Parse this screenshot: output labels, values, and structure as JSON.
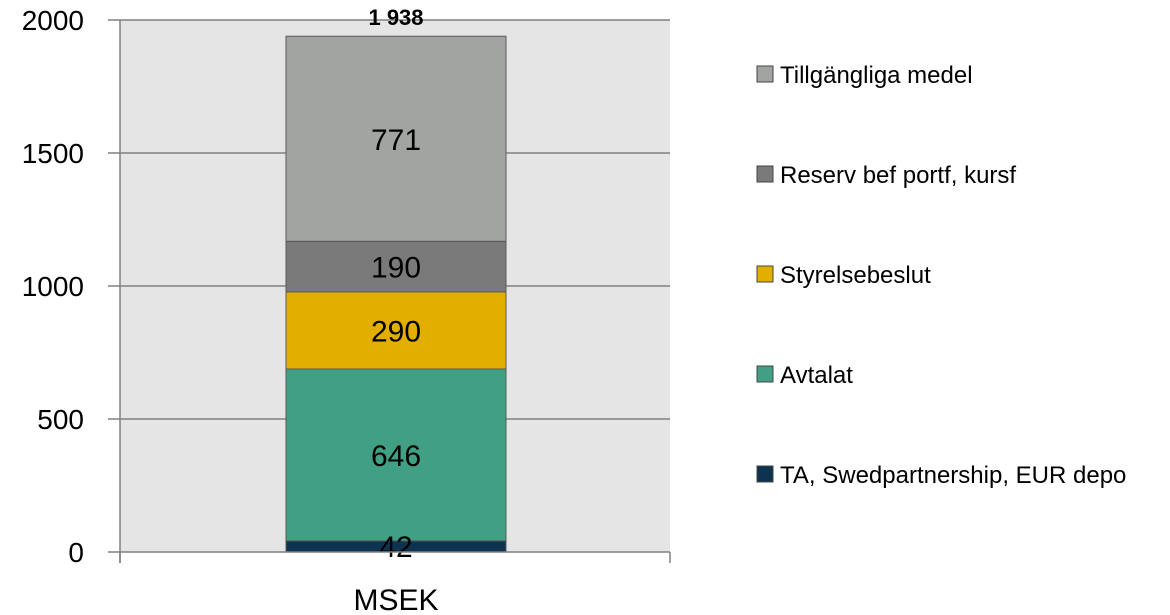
{
  "chart_data": {
    "type": "bar",
    "stacked": true,
    "categories": [
      "MSEK"
    ],
    "series": [
      {
        "name": "TA, Swedpartnership, EUR depo",
        "values": [
          42
        ],
        "label": "42",
        "color": "#0e3350"
      },
      {
        "name": "Avtalat",
        "values": [
          646
        ],
        "label": "646",
        "color": "#41a084"
      },
      {
        "name": "Styrelsebeslut",
        "values": [
          290
        ],
        "label": "290",
        "color": "#e2af00"
      },
      {
        "name": "Reserv bef portf, kursf",
        "values": [
          190
        ],
        "label": "190",
        "color": "#7a7a7a"
      },
      {
        "name": "Tillgängliga medel",
        "values": [
          771
        ],
        "label": "771",
        "color": "#a1a4a0"
      }
    ],
    "total": 1938,
    "total_label": "1 938",
    "ylim": [
      0,
      2000
    ],
    "yticks": [
      "0",
      "500",
      "1000",
      "1500",
      "2000"
    ],
    "ytick_values": [
      0,
      500,
      1000,
      1500,
      2000
    ],
    "grid": true,
    "plot_background": "#e5e5e5",
    "legend_position": "right",
    "title": "",
    "xlabel": "",
    "ylabel": ""
  }
}
